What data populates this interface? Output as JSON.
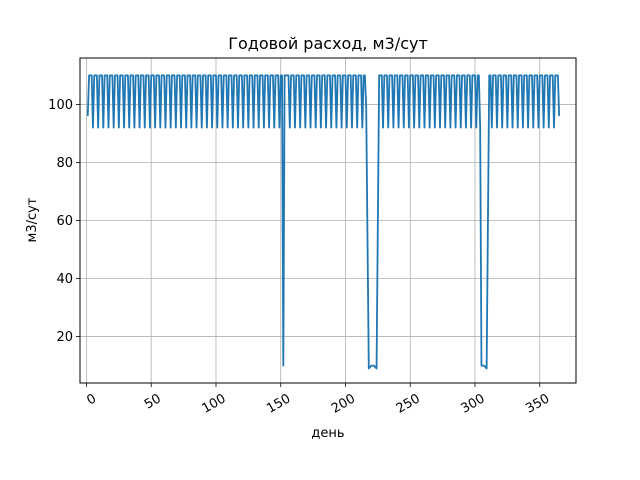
{
  "chart_data": {
    "type": "line",
    "title": "Годовой расход, м3/сут",
    "xlabel": "день",
    "ylabel": "м3/сут",
    "xlim": [
      -5,
      378
    ],
    "ylim": [
      4,
      116
    ],
    "xticks": [
      0,
      50,
      100,
      150,
      200,
      250,
      300,
      350
    ],
    "yticks": [
      20,
      40,
      60,
      80,
      100
    ],
    "xtick_labels": [
      "0",
      "50",
      "100",
      "150",
      "200",
      "250",
      "300",
      "350"
    ],
    "ytick_labels": [
      "20",
      "40",
      "60",
      "80",
      "100"
    ],
    "grid": true,
    "series": [
      {
        "color": "#1f77b4",
        "pattern": {
          "start": 1,
          "end": 365,
          "period": 4,
          "high": 110,
          "low": 92,
          "end_value": 96
        },
        "dips": [
          {
            "x": [
              151,
              152,
              153
            ],
            "y": [
              110,
              10,
              110
            ]
          },
          {
            "x": [
              216,
              218,
              220,
              222,
              224,
              226
            ],
            "y": [
              99,
              9,
              10,
              10,
              9,
              110
            ]
          },
          {
            "x": [
              304,
              305,
              307,
              309,
              311
            ],
            "y": [
              92,
              10,
              10,
              9,
              110
            ]
          }
        ]
      }
    ]
  }
}
